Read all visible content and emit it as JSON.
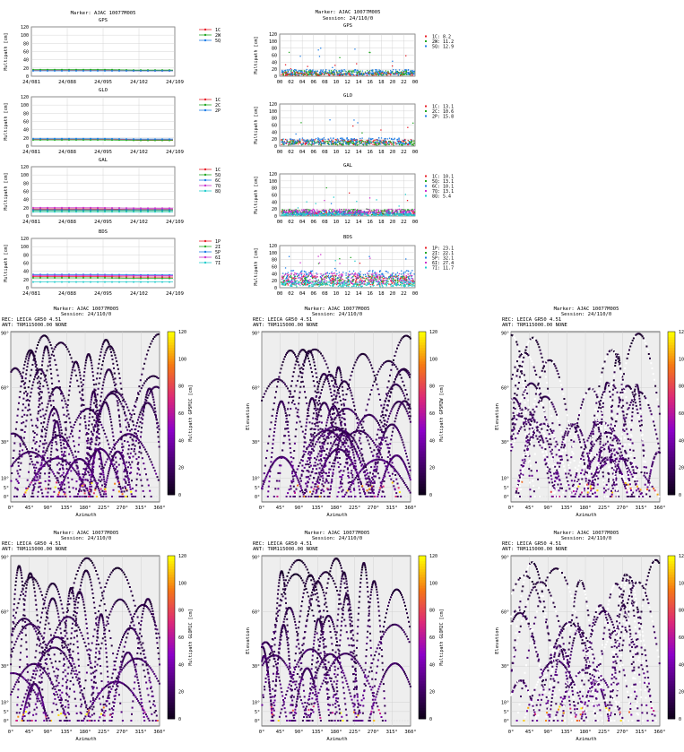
{
  "header": {
    "marker": "Marker: AJAC 10077M005",
    "session": "Session: 24/110/0",
    "rec": "REC: LEICA GR50          4.51",
    "ant": "ANT: TRM115000.00     NONE"
  },
  "common": {
    "ylabel_mp": "Multipath [cm]",
    "xlabel_az": "Azimuth",
    "ylabel_el": "Elevation",
    "long_ticks": [
      "24/081",
      "24/088",
      "24/095",
      "24/102",
      "24/109"
    ],
    "hour_ticks": [
      "00",
      "02",
      "04",
      "06",
      "08",
      "10",
      "12",
      "14",
      "16",
      "18",
      "20",
      "22",
      "00"
    ],
    "ymp_ticks": [
      "0",
      "20",
      "40",
      "60",
      "80",
      "100",
      "120"
    ],
    "az_ticks": [
      "0°",
      "45°",
      "90°",
      "135°",
      "180°",
      "225°",
      "270°",
      "315°",
      "360°"
    ],
    "el_ticks": [
      "0°",
      "5°",
      "10°",
      "30°",
      "60°",
      "90°"
    ],
    "cb_ticks": [
      "0",
      "20",
      "40",
      "60",
      "80",
      "100",
      "120"
    ]
  },
  "colors": {
    "c1": "#e8202a",
    "c2": "#25a825",
    "c3": "#1e7de6",
    "c4": "#cc33cc",
    "c5": "#22cccc",
    "grid": "#cccccc",
    "panel_bg": "#eeeeee"
  },
  "chart_data": [
    {
      "type": "line",
      "title": "GPS",
      "xlabel": "",
      "ylabel": "Multipath [cm]",
      "ylim": [
        0,
        120
      ],
      "x": [
        "24/081",
        "24/088",
        "24/095",
        "24/102",
        "24/109"
      ],
      "series": [
        {
          "name": "1C",
          "values": [
            14,
            14,
            14,
            13,
            13
          ]
        },
        {
          "name": "2W",
          "values": [
            16,
            16,
            16,
            15,
            15
          ]
        },
        {
          "name": "5Q",
          "values": [
            13,
            13,
            13,
            13,
            13
          ]
        }
      ],
      "legend": "right"
    },
    {
      "type": "line",
      "title": "GLO",
      "xlabel": "",
      "ylabel": "Multipath [cm]",
      "ylim": [
        0,
        120
      ],
      "x": [
        "24/081",
        "24/088",
        "24/095",
        "24/102",
        "24/109"
      ],
      "series": [
        {
          "name": "1C",
          "values": [
            16,
            16,
            16,
            15,
            15
          ]
        },
        {
          "name": "2C",
          "values": [
            15,
            15,
            15,
            14,
            14
          ]
        },
        {
          "name": "2P",
          "values": [
            18,
            18,
            18,
            17,
            17
          ]
        }
      ],
      "legend": "right"
    },
    {
      "type": "line",
      "title": "GAL",
      "xlabel": "",
      "ylabel": "Multipath [cm]",
      "ylim": [
        0,
        120
      ],
      "x": [
        "24/081",
        "24/088",
        "24/095",
        "24/102",
        "24/109"
      ],
      "series": [
        {
          "name": "1C",
          "values": [
            17,
            17,
            17,
            16,
            16
          ]
        },
        {
          "name": "5Q",
          "values": [
            13,
            13,
            13,
            13,
            13
          ]
        },
        {
          "name": "6C",
          "values": [
            15,
            15,
            15,
            15,
            15
          ]
        },
        {
          "name": "7Q",
          "values": [
            20,
            20,
            20,
            19,
            19
          ]
        },
        {
          "name": "8Q",
          "values": [
            10,
            10,
            10,
            10,
            10
          ]
        }
      ],
      "legend": "right"
    },
    {
      "type": "line",
      "title": "BDS",
      "xlabel": "",
      "ylabel": "Multipath [cm]",
      "ylim": [
        0,
        120
      ],
      "x": [
        "24/081",
        "24/088",
        "24/095",
        "24/102",
        "24/109"
      ],
      "series": [
        {
          "name": "1P",
          "values": [
            27,
            27,
            27,
            26,
            26
          ]
        },
        {
          "name": "2I",
          "values": [
            24,
            24,
            24,
            23,
            23
          ]
        },
        {
          "name": "5P",
          "values": [
            32,
            32,
            32,
            31,
            31
          ]
        },
        {
          "name": "6I",
          "values": [
            30,
            30,
            30,
            29,
            29
          ]
        },
        {
          "name": "7I",
          "values": [
            14,
            14,
            14,
            14,
            14
          ]
        }
      ],
      "legend": "right"
    },
    {
      "type": "scatter",
      "title": "GPS",
      "subtitle": "Session: 24/110/0",
      "ylabel": "Multipath [cm]",
      "ylim": [
        0,
        120
      ],
      "xlim": [
        0,
        24
      ],
      "series": [
        {
          "name": "1C",
          "label": "1C:  8.2",
          "mean": 8.2
        },
        {
          "name": "2W",
          "label": "2W: 11.2",
          "mean": 11.2
        },
        {
          "name": "5Q",
          "label": "5Q: 12.9",
          "mean": 12.9
        }
      ]
    },
    {
      "type": "scatter",
      "title": "GLO",
      "ylabel": "Multipath [cm]",
      "ylim": [
        0,
        120
      ],
      "xlim": [
        0,
        24
      ],
      "series": [
        {
          "name": "1C",
          "label": "1C: 13.1",
          "mean": 13.1
        },
        {
          "name": "2C",
          "label": "2C: 10.6",
          "mean": 10.6
        },
        {
          "name": "2P",
          "label": "2P: 15.8",
          "mean": 15.8
        }
      ]
    },
    {
      "type": "scatter",
      "title": "GAL",
      "ylabel": "Multipath [cm]",
      "ylim": [
        0,
        120
      ],
      "xlim": [
        0,
        24
      ],
      "series": [
        {
          "name": "1C",
          "label": "1C: 10.1",
          "mean": 10.1
        },
        {
          "name": "5Q",
          "label": "5Q: 13.1",
          "mean": 13.1
        },
        {
          "name": "6C",
          "label": "6C: 10.1",
          "mean": 10.1
        },
        {
          "name": "7Q",
          "label": "7Q: 13.1",
          "mean": 13.1
        },
        {
          "name": "8Q",
          "label": "8Q:  5.4",
          "mean": 5.4
        }
      ]
    },
    {
      "type": "scatter",
      "title": "BDS",
      "ylabel": "Multipath [cm]",
      "ylim": [
        0,
        120
      ],
      "xlim": [
        0,
        24
      ],
      "series": [
        {
          "name": "1P",
          "label": "1P: 23.1",
          "mean": 23.1
        },
        {
          "name": "2I",
          "label": "2I: 22.1",
          "mean": 22.1
        },
        {
          "name": "5P",
          "label": "5P: 32.1",
          "mean": 32.1
        },
        {
          "name": "6I",
          "label": "6I: 27.4",
          "mean": 27.4
        },
        {
          "name": "7I",
          "label": "7I: 11.7",
          "mean": 11.7
        }
      ]
    },
    {
      "type": "heatmap",
      "colorbar_label": "Multipath GPSM1C [cm]",
      "xlabel": "Azimuth",
      "ylabel": "Elevation",
      "xlim": [
        0,
        360
      ],
      "ylim": [
        0,
        90
      ],
      "clim": [
        0,
        120
      ]
    },
    {
      "type": "heatmap",
      "colorbar_label": "Multipath GPSM2W [cm]",
      "xlabel": "Azimuth",
      "ylabel": "Elevation",
      "xlim": [
        0,
        360
      ],
      "ylim": [
        0,
        90
      ],
      "clim": [
        0,
        120
      ]
    },
    {
      "type": "heatmap",
      "colorbar_label": "",
      "xlabel": "Azimuth",
      "ylabel": "Elevation",
      "xlim": [
        0,
        360
      ],
      "ylim": [
        0,
        90
      ],
      "clim": [
        0,
        120
      ]
    },
    {
      "type": "heatmap",
      "colorbar_label": "Multipath GLOM1C [cm]",
      "xlabel": "Azimuth",
      "ylabel": "Elevation",
      "xlim": [
        0,
        360
      ],
      "ylim": [
        0,
        90
      ],
      "clim": [
        0,
        120
      ]
    },
    {
      "type": "heatmap",
      "colorbar_label": "Multipath GLOM2C [cm]",
      "xlabel": "Azimuth",
      "ylabel": "Elevation",
      "xlim": [
        0,
        360
      ],
      "ylim": [
        0,
        90
      ],
      "clim": [
        0,
        120
      ]
    },
    {
      "type": "heatmap",
      "colorbar_label": "",
      "xlabel": "Azimuth",
      "ylabel": "Elevation",
      "xlim": [
        0,
        360
      ],
      "ylim": [
        0,
        90
      ],
      "clim": [
        0,
        120
      ]
    }
  ]
}
